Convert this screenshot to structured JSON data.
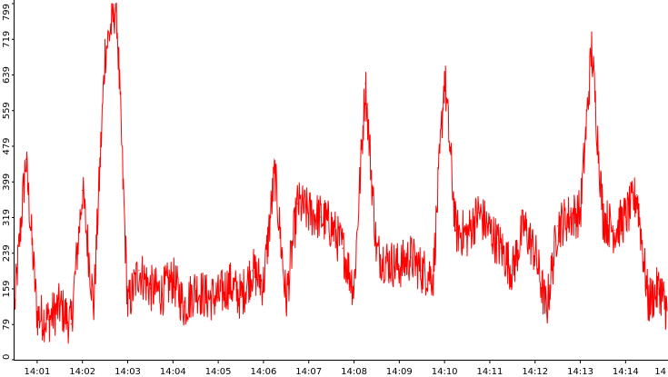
{
  "chart_data": {
    "type": "line",
    "title": "",
    "xlabel": "",
    "ylabel": "",
    "ylim": [
      0,
      799
    ],
    "y_ticks": [
      "0",
      "79",
      "159",
      "239",
      "319",
      "399",
      "479",
      "559",
      "639",
      "719",
      "799"
    ],
    "x_ticks": [
      "14:01",
      "14:02",
      "14:03",
      "14:04",
      "14:05",
      "14:06",
      "14:07",
      "14:08",
      "14:09",
      "14:10",
      "14:11",
      "14:12",
      "14:13",
      "14:14",
      "14"
    ],
    "x_range": [
      "14:00:30",
      "14:14:55"
    ],
    "grid": false,
    "series": [
      {
        "color": "#ff0000",
        "x": [
          "14:00:30",
          "14:00:45",
          "14:01:00",
          "14:01:15",
          "14:01:30",
          "14:01:45",
          "14:02:00",
          "14:02:15",
          "14:02:30",
          "14:02:45",
          "14:03:00",
          "14:03:15",
          "14:03:30",
          "14:03:45",
          "14:04:00",
          "14:04:15",
          "14:04:30",
          "14:04:45",
          "14:05:00",
          "14:05:15",
          "14:05:30",
          "14:05:45",
          "14:06:00",
          "14:06:15",
          "14:06:30",
          "14:06:45",
          "14:07:00",
          "14:07:15",
          "14:07:30",
          "14:07:45",
          "14:08:00",
          "14:08:15",
          "14:08:30",
          "14:08:45",
          "14:09:00",
          "14:09:15",
          "14:09:30",
          "14:09:45",
          "14:10:00",
          "14:10:15",
          "14:10:30",
          "14:10:45",
          "14:11:00",
          "14:11:15",
          "14:11:30",
          "14:11:45",
          "14:12:00",
          "14:12:15",
          "14:12:30",
          "14:12:45",
          "14:13:00",
          "14:13:15",
          "14:13:30",
          "14:13:45",
          "14:14:00",
          "14:14:15",
          "14:14:30",
          "14:14:45",
          "14:14:55"
        ],
        "y": [
          120,
          450,
          100,
          90,
          120,
          80,
          380,
          120,
          690,
          800,
          120,
          200,
          160,
          150,
          180,
          120,
          160,
          140,
          140,
          170,
          140,
          200,
          170,
          420,
          130,
          350,
          330,
          320,
          300,
          250,
          160,
          620,
          240,
          220,
          210,
          230,
          200,
          190,
          640,
          290,
          280,
          330,
          290,
          250,
          200,
          300,
          240,
          110,
          300,
          320,
          330,
          700,
          320,
          290,
          320,
          370,
          130,
          160,
          110
        ]
      }
    ]
  }
}
